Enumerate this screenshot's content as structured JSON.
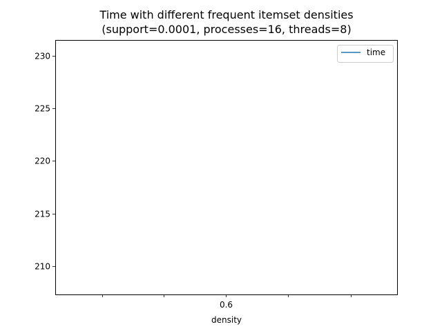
{
  "chart_data": {
    "type": "line",
    "title_lines": [
      "Time with different frequent itemset densities",
      "(support=0.0001, processes=16, threads=8)"
    ],
    "xlabel": "density",
    "ylabel": "",
    "x_ticks": [
      {
        "value": 0.4,
        "label": ""
      },
      {
        "value": 0.5,
        "label": ""
      },
      {
        "value": 0.6,
        "label": "0.6"
      },
      {
        "value": 0.7,
        "label": ""
      },
      {
        "value": 0.8,
        "label": ""
      }
    ],
    "xlim": [
      0.325,
      0.875
    ],
    "y_ticks": [
      {
        "value": 210,
        "label": "210"
      },
      {
        "value": 215,
        "label": "215"
      },
      {
        "value": 220,
        "label": "220"
      },
      {
        "value": 225,
        "label": "225"
      },
      {
        "value": 230,
        "label": "230"
      }
    ],
    "ylim": [
      207.3,
      231.5
    ],
    "grid": false,
    "legend_position": "top-right",
    "series": [
      {
        "name": "time",
        "color": "#1f77b4",
        "x": [],
        "y": []
      }
    ]
  }
}
